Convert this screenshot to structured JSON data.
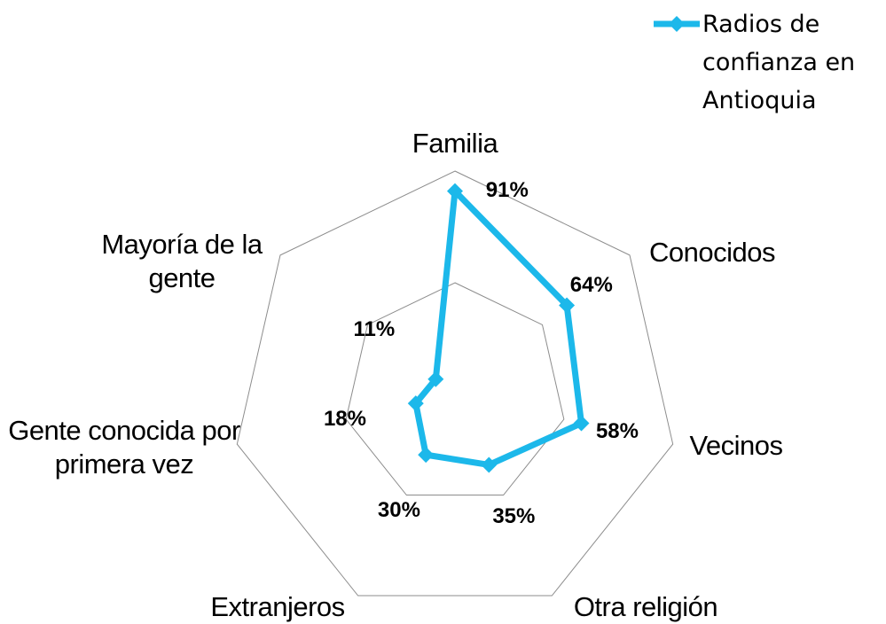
{
  "chart_data": {
    "type": "radar",
    "categories": [
      "Familia",
      "Conocidos",
      "Vecinos",
      "Otra religión",
      "Extranjeros",
      "Gente conocida por primera vez",
      "Mayoría de la gente"
    ],
    "series": [
      {
        "name": "Radios de confianza en Antioquia",
        "color": "#1cb8ea",
        "values": [
          91,
          64,
          58,
          35,
          30,
          18,
          11
        ],
        "value_labels": [
          "91%",
          "64%",
          "58%",
          "35%",
          "30%",
          "18%",
          "11%"
        ]
      }
    ],
    "ylim": [
      0,
      100
    ],
    "yticks": [
      50,
      100
    ],
    "grid": true,
    "legend": "top-right"
  }
}
